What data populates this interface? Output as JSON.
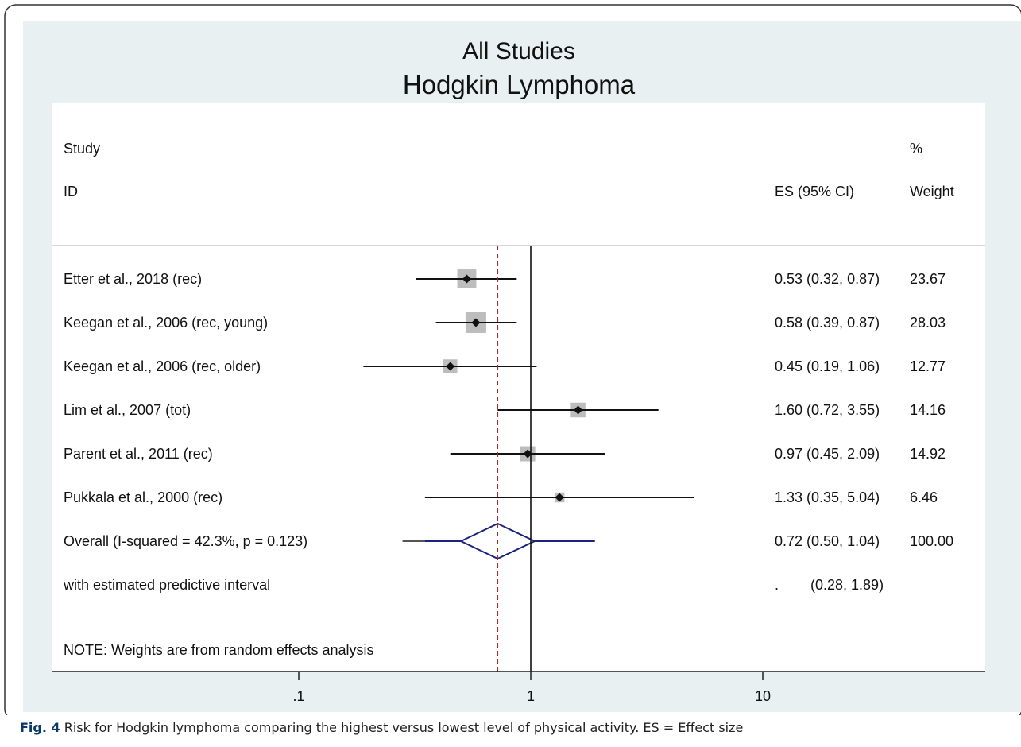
{
  "caption": {
    "label": "Fig. 4",
    "text": "Risk for Hodgkin lymphoma comparing the highest versus lowest level of physical activity. ES = Effect size"
  },
  "chart_data": {
    "type": "forest",
    "title": "All Studies",
    "subtitle": "Hodgkin Lymphoma",
    "headers": {
      "study_top": "Study",
      "study_bottom": "ID",
      "es": "ES (95% CI)",
      "weight_top": "%",
      "weight_bottom": "Weight"
    },
    "x_scale": "log",
    "x_ticks": [
      0.1,
      1,
      10
    ],
    "x_tick_labels": [
      ".1",
      "1",
      "10"
    ],
    "xlim": [
      0.1,
      10
    ],
    "reference_line": 1,
    "overall_line": 0.72,
    "studies": [
      {
        "id": "Etter et al., 2018 (rec)",
        "es": 0.53,
        "lo": 0.32,
        "hi": 0.87,
        "es_label": "0.53 (0.32, 0.87)",
        "weight": "23.67"
      },
      {
        "id": "Keegan et al., 2006 (rec, young)",
        "es": 0.58,
        "lo": 0.39,
        "hi": 0.87,
        "es_label": "0.58 (0.39, 0.87)",
        "weight": "28.03"
      },
      {
        "id": "Keegan et al., 2006 (rec, older)",
        "es": 0.45,
        "lo": 0.19,
        "hi": 1.06,
        "es_label": "0.45 (0.19, 1.06)",
        "weight": "12.77"
      },
      {
        "id": "Lim et al., 2007 (tot)",
        "es": 1.6,
        "lo": 0.72,
        "hi": 3.55,
        "es_label": "1.60 (0.72, 3.55)",
        "weight": "14.16"
      },
      {
        "id": "Parent et al., 2011 (rec)",
        "es": 0.97,
        "lo": 0.45,
        "hi": 2.09,
        "es_label": "0.97 (0.45, 2.09)",
        "weight": "14.92"
      },
      {
        "id": "Pukkala et al., 2000 (rec)",
        "es": 1.33,
        "lo": 0.35,
        "hi": 5.04,
        "es_label": "1.33 (0.35, 5.04)",
        "weight": "6.46"
      }
    ],
    "overall": {
      "label": "Overall  (I-squared = 42.3%, p = 0.123)",
      "es": 0.72,
      "lo": 0.5,
      "hi": 1.04,
      "es_label": "0.72 (0.50, 1.04)",
      "weight": "100.00"
    },
    "predictive": {
      "label": "with estimated predictive interval",
      "lo": 0.28,
      "hi": 1.89,
      "dot": ".",
      "es_label": "(0.28, 1.89)"
    },
    "note": "NOTE: Weights are from random effects analysis",
    "colors": {
      "outer_bg": "#e8f0f2",
      "plot_bg": "#ffffff",
      "weight_box": "#bdbdbd",
      "overall": "#1a237e",
      "overall_line": "#a03030"
    }
  }
}
